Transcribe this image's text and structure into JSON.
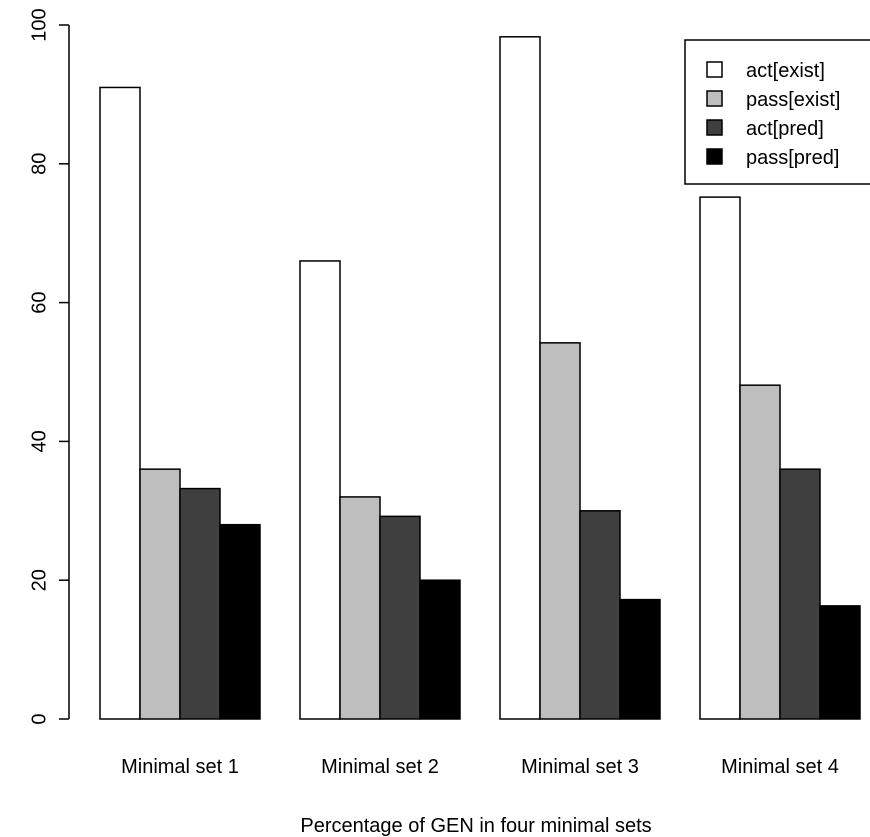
{
  "chart_data": {
    "type": "bar",
    "title": "",
    "xlabel": "Percentage of GEN in four minimal sets",
    "ylabel": "",
    "ylim": [
      0,
      100
    ],
    "yticks": [
      0,
      20,
      40,
      60,
      80,
      100
    ],
    "categories": [
      "Minimal set 1",
      "Minimal set 2",
      "Minimal set 3",
      "Minimal set 4"
    ],
    "series": [
      {
        "name": "act[exist]",
        "color": "#ffffff",
        "values": [
          91,
          66,
          98.3,
          75.2
        ]
      },
      {
        "name": "pass[exist]",
        "color": "#bebebe",
        "values": [
          36,
          32,
          54.2,
          48.1
        ]
      },
      {
        "name": "act[pred]",
        "color": "#3f3f3f",
        "values": [
          33.2,
          29.2,
          30,
          36
        ]
      },
      {
        "name": "pass[pred]",
        "color": "#000000",
        "values": [
          28,
          20,
          17.2,
          16.3
        ]
      }
    ],
    "legend_position": "top-right",
    "grid": false
  }
}
